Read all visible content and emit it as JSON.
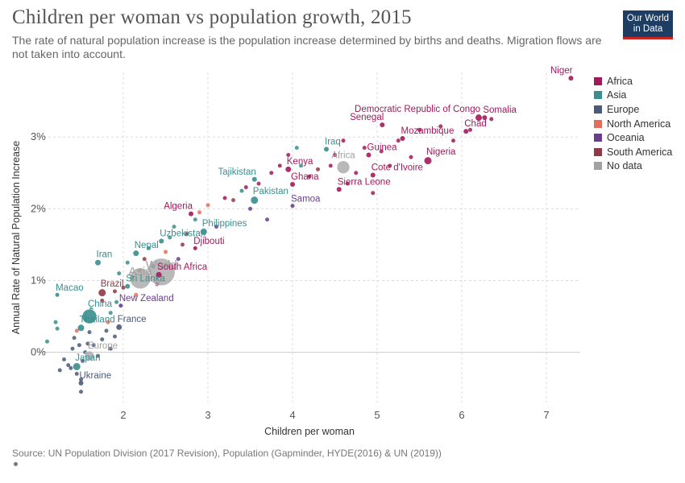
{
  "header": {
    "title": "Children per woman vs population growth, 2015",
    "subtitle": "The rate of natural population increase is the population increase determined by births and deaths. Migration flows are not taken into account.",
    "logo_line1": "Our World",
    "logo_line2": "in Data"
  },
  "footer": {
    "source": "Source: UN Population Division (2017 Revision), Population (Gapminder, HYDE(2016) & UN (2019))"
  },
  "colors": {
    "Africa": "#a2195b",
    "Asia": "#3a8e8e",
    "Europe": "#4b5a78",
    "North America": "#e56e5a",
    "Oceania": "#6b3d8d",
    "South America": "#8f3a46",
    "No data": "#a2a2a2"
  },
  "chart_data": {
    "type": "scatter",
    "xlabel": "Children per woman",
    "ylabel": "Annual Rate of Natural Population Increase",
    "xlim": [
      1.0,
      7.4
    ],
    "ylim": [
      -0.7,
      3.9
    ],
    "x_ticks": [
      2,
      3,
      4,
      5,
      6,
      7
    ],
    "y_ticks": [
      {
        "value": 0,
        "label": "0%"
      },
      {
        "value": 1,
        "label": "1%"
      },
      {
        "value": 2,
        "label": "2%"
      },
      {
        "value": 3,
        "label": "3%"
      }
    ],
    "grid": true,
    "legend_position": "right",
    "legend": [
      "Africa",
      "Asia",
      "Europe",
      "North America",
      "Oceania",
      "South America",
      "No data"
    ],
    "labeled_points": [
      {
        "label": "Niger",
        "x": 7.29,
        "y": 3.82,
        "group": "Africa",
        "size": 3,
        "anchor": "end"
      },
      {
        "label": "Somalia",
        "x": 6.27,
        "y": 3.27,
        "group": "Africa",
        "size": 3,
        "anchor": "start"
      },
      {
        "label": "Democratic Republic of Congo",
        "x": 6.2,
        "y": 3.27,
        "group": "Africa",
        "size": 4,
        "anchor": "end"
      },
      {
        "label": "Chad",
        "x": 6.05,
        "y": 3.08,
        "group": "Africa",
        "size": 3,
        "anchor": "start"
      },
      {
        "label": "Senegal",
        "x": 5.06,
        "y": 3.17,
        "group": "Africa",
        "size": 3,
        "anchor": "end"
      },
      {
        "label": "Mozambique",
        "x": 5.3,
        "y": 2.98,
        "group": "Africa",
        "size": 3,
        "anchor": "start"
      },
      {
        "label": "Nigeria",
        "x": 5.6,
        "y": 2.67,
        "group": "Africa",
        "size": 4.5,
        "anchor": "start"
      },
      {
        "label": "Guinea",
        "x": 4.9,
        "y": 2.75,
        "group": "Africa",
        "size": 3,
        "anchor": "start"
      },
      {
        "label": "Cote d'Ivoire",
        "x": 4.95,
        "y": 2.47,
        "group": "Africa",
        "size": 3,
        "anchor": "start"
      },
      {
        "label": "Sierra Leone",
        "x": 4.55,
        "y": 2.27,
        "group": "Africa",
        "size": 3,
        "anchor": "start"
      },
      {
        "label": "Africa",
        "x": 4.6,
        "y": 2.58,
        "group": "No data",
        "size": 8,
        "anchor": "middle"
      },
      {
        "label": "Iraq",
        "x": 4.4,
        "y": 2.83,
        "group": "Asia",
        "size": 3,
        "anchor": "start"
      },
      {
        "label": "Kenya",
        "x": 3.95,
        "y": 2.55,
        "group": "Africa",
        "size": 3.5,
        "anchor": "start"
      },
      {
        "label": "Ghana",
        "x": 4.0,
        "y": 2.34,
        "group": "Africa",
        "size": 3,
        "anchor": "start"
      },
      {
        "label": "Tajikistan",
        "x": 3.55,
        "y": 2.41,
        "group": "Asia",
        "size": 3,
        "anchor": "end"
      },
      {
        "label": "Pakistan",
        "x": 3.55,
        "y": 2.12,
        "group": "Asia",
        "size": 4.5,
        "anchor": "start"
      },
      {
        "label": "Samoa",
        "x": 4.0,
        "y": 2.04,
        "group": "Oceania",
        "size": 2.5,
        "anchor": "start"
      },
      {
        "label": "Algeria",
        "x": 2.8,
        "y": 1.93,
        "group": "Africa",
        "size": 3,
        "anchor": "end"
      },
      {
        "label": "Philippines",
        "x": 2.95,
        "y": 1.68,
        "group": "Asia",
        "size": 4,
        "anchor": "start"
      },
      {
        "label": "Uzbekistan",
        "x": 2.45,
        "y": 1.55,
        "group": "Asia",
        "size": 3,
        "anchor": "start"
      },
      {
        "label": "Djibouti",
        "x": 2.85,
        "y": 1.45,
        "group": "Africa",
        "size": 2.5,
        "anchor": "start"
      },
      {
        "label": "Iran",
        "x": 1.7,
        "y": 1.25,
        "group": "Asia",
        "size": 3.5,
        "anchor": "start"
      },
      {
        "label": "Nepal",
        "x": 2.15,
        "y": 1.38,
        "group": "Asia",
        "size": 3.5,
        "anchor": "start"
      },
      {
        "label": "World",
        "x": 2.45,
        "y": 1.12,
        "group": "No data",
        "size": 17,
        "anchor": "middle"
      },
      {
        "label": "Asia",
        "x": 2.2,
        "y": 1.03,
        "group": "No data",
        "size": 13,
        "anchor": "middle"
      },
      {
        "label": "South Africa",
        "x": 2.42,
        "y": 1.08,
        "group": "Africa",
        "size": 3.5,
        "anchor": "start"
      },
      {
        "label": "Sri Lanka",
        "x": 2.05,
        "y": 0.92,
        "group": "Asia",
        "size": 3,
        "anchor": "start"
      },
      {
        "label": "Macao",
        "x": 1.22,
        "y": 0.8,
        "group": "Asia",
        "size": 2.5,
        "anchor": "start"
      },
      {
        "label": "Brazil",
        "x": 1.75,
        "y": 0.83,
        "group": "South America",
        "size": 4.5,
        "anchor": "start"
      },
      {
        "label": "New Zealand",
        "x": 1.97,
        "y": 0.65,
        "group": "Oceania",
        "size": 2.5,
        "anchor": "start"
      },
      {
        "label": "China",
        "x": 1.6,
        "y": 0.5,
        "group": "Asia",
        "size": 9,
        "anchor": "start"
      },
      {
        "label": "Thailand",
        "x": 1.5,
        "y": 0.34,
        "group": "Asia",
        "size": 4,
        "anchor": "start"
      },
      {
        "label": "France",
        "x": 1.95,
        "y": 0.35,
        "group": "Europe",
        "size": 3.5,
        "anchor": "start"
      },
      {
        "label": "Europe",
        "x": 1.6,
        "y": -0.05,
        "group": "No data",
        "size": 6,
        "anchor": "start"
      },
      {
        "label": "Japan",
        "x": 1.45,
        "y": -0.2,
        "group": "Asia",
        "size": 4.5,
        "anchor": "start"
      },
      {
        "label": "Ukraine",
        "x": 1.5,
        "y": -0.43,
        "group": "Europe",
        "size": 3,
        "anchor": "start"
      }
    ],
    "points": [
      {
        "x": 1.1,
        "y": 0.15,
        "group": "Asia"
      },
      {
        "x": 1.2,
        "y": 0.42,
        "group": "Asia"
      },
      {
        "x": 1.22,
        "y": 0.33,
        "group": "Asia"
      },
      {
        "x": 1.3,
        "y": -0.1,
        "group": "Europe"
      },
      {
        "x": 1.25,
        "y": -0.25,
        "group": "Europe"
      },
      {
        "x": 1.35,
        "y": -0.18,
        "group": "Europe"
      },
      {
        "x": 1.4,
        "y": 0.05,
        "group": "Europe"
      },
      {
        "x": 1.45,
        "y": -0.3,
        "group": "Europe"
      },
      {
        "x": 1.5,
        "y": -0.55,
        "group": "Europe"
      },
      {
        "x": 1.48,
        "y": 0.1,
        "group": "Europe"
      },
      {
        "x": 1.55,
        "y": 0.0,
        "group": "Europe"
      },
      {
        "x": 1.52,
        "y": -0.12,
        "group": "Europe"
      },
      {
        "x": 1.58,
        "y": 0.12,
        "group": "Europe"
      },
      {
        "x": 1.42,
        "y": 0.2,
        "group": "Europe"
      },
      {
        "x": 1.6,
        "y": 0.28,
        "group": "Europe"
      },
      {
        "x": 1.65,
        "y": 0.1,
        "group": "Europe"
      },
      {
        "x": 1.7,
        "y": -0.05,
        "group": "Europe"
      },
      {
        "x": 1.75,
        "y": 0.18,
        "group": "Europe"
      },
      {
        "x": 1.8,
        "y": 0.3,
        "group": "Europe"
      },
      {
        "x": 1.85,
        "y": 0.05,
        "group": "Europe"
      },
      {
        "x": 1.9,
        "y": 0.22,
        "group": "Europe"
      },
      {
        "x": 1.5,
        "y": -0.38,
        "group": "Europe"
      },
      {
        "x": 1.38,
        "y": -0.22,
        "group": "Europe"
      },
      {
        "x": 1.45,
        "y": 0.3,
        "group": "North America"
      },
      {
        "x": 1.82,
        "y": 0.42,
        "group": "North America"
      },
      {
        "x": 1.55,
        "y": 0.45,
        "group": "Asia"
      },
      {
        "x": 1.62,
        "y": 0.6,
        "group": "Asia"
      },
      {
        "x": 1.85,
        "y": 0.55,
        "group": "Asia"
      },
      {
        "x": 1.92,
        "y": 0.7,
        "group": "Asia"
      },
      {
        "x": 1.75,
        "y": 0.72,
        "group": "South America"
      },
      {
        "x": 1.9,
        "y": 0.85,
        "group": "South America"
      },
      {
        "x": 2.0,
        "y": 0.9,
        "group": "South America"
      },
      {
        "x": 1.95,
        "y": 1.1,
        "group": "Asia"
      },
      {
        "x": 2.05,
        "y": 1.25,
        "group": "Asia"
      },
      {
        "x": 2.1,
        "y": 1.05,
        "group": "Asia"
      },
      {
        "x": 2.15,
        "y": 0.8,
        "group": "North America"
      },
      {
        "x": 2.2,
        "y": 1.15,
        "group": "North America"
      },
      {
        "x": 2.25,
        "y": 1.3,
        "group": "South America"
      },
      {
        "x": 2.3,
        "y": 1.45,
        "group": "Asia"
      },
      {
        "x": 2.35,
        "y": 1.2,
        "group": "Asia"
      },
      {
        "x": 2.4,
        "y": 0.95,
        "group": "Africa"
      },
      {
        "x": 2.5,
        "y": 1.4,
        "group": "North America"
      },
      {
        "x": 2.55,
        "y": 1.6,
        "group": "Asia"
      },
      {
        "x": 2.6,
        "y": 1.75,
        "group": "Asia"
      },
      {
        "x": 2.65,
        "y": 1.3,
        "group": "Oceania"
      },
      {
        "x": 2.7,
        "y": 1.5,
        "group": "South America"
      },
      {
        "x": 2.75,
        "y": 1.65,
        "group": "South America"
      },
      {
        "x": 2.85,
        "y": 1.85,
        "group": "Asia"
      },
      {
        "x": 2.9,
        "y": 1.95,
        "group": "North America"
      },
      {
        "x": 3.0,
        "y": 2.05,
        "group": "North America"
      },
      {
        "x": 3.1,
        "y": 1.75,
        "group": "Oceania"
      },
      {
        "x": 3.2,
        "y": 2.15,
        "group": "Africa"
      },
      {
        "x": 3.3,
        "y": 2.12,
        "group": "South America"
      },
      {
        "x": 3.4,
        "y": 2.25,
        "group": "Asia"
      },
      {
        "x": 3.45,
        "y": 2.3,
        "group": "Africa"
      },
      {
        "x": 3.5,
        "y": 2.0,
        "group": "Oceania"
      },
      {
        "x": 3.6,
        "y": 2.35,
        "group": "Africa"
      },
      {
        "x": 3.7,
        "y": 1.85,
        "group": "Oceania"
      },
      {
        "x": 3.75,
        "y": 2.5,
        "group": "Africa"
      },
      {
        "x": 3.85,
        "y": 2.6,
        "group": "Africa"
      },
      {
        "x": 3.95,
        "y": 2.75,
        "group": "Africa"
      },
      {
        "x": 4.05,
        "y": 2.85,
        "group": "Asia"
      },
      {
        "x": 4.1,
        "y": 2.6,
        "group": "Asia"
      },
      {
        "x": 4.2,
        "y": 2.45,
        "group": "Africa"
      },
      {
        "x": 4.3,
        "y": 2.55,
        "group": "South America"
      },
      {
        "x": 4.45,
        "y": 2.6,
        "group": "Africa"
      },
      {
        "x": 4.5,
        "y": 2.75,
        "group": "Africa"
      },
      {
        "x": 4.6,
        "y": 2.95,
        "group": "Africa"
      },
      {
        "x": 4.65,
        "y": 2.35,
        "group": "Africa"
      },
      {
        "x": 4.75,
        "y": 2.5,
        "group": "Africa"
      },
      {
        "x": 4.85,
        "y": 2.85,
        "group": "Africa"
      },
      {
        "x": 4.95,
        "y": 2.22,
        "group": "Africa"
      },
      {
        "x": 5.05,
        "y": 2.8,
        "group": "Africa"
      },
      {
        "x": 5.15,
        "y": 2.6,
        "group": "Africa"
      },
      {
        "x": 5.25,
        "y": 2.95,
        "group": "Africa"
      },
      {
        "x": 5.4,
        "y": 2.72,
        "group": "Africa"
      },
      {
        "x": 5.5,
        "y": 3.1,
        "group": "Africa"
      },
      {
        "x": 5.75,
        "y": 3.15,
        "group": "Africa"
      },
      {
        "x": 5.9,
        "y": 2.95,
        "group": "Africa"
      },
      {
        "x": 6.1,
        "y": 3.1,
        "group": "Africa"
      },
      {
        "x": 6.35,
        "y": 3.25,
        "group": "Africa"
      }
    ]
  }
}
